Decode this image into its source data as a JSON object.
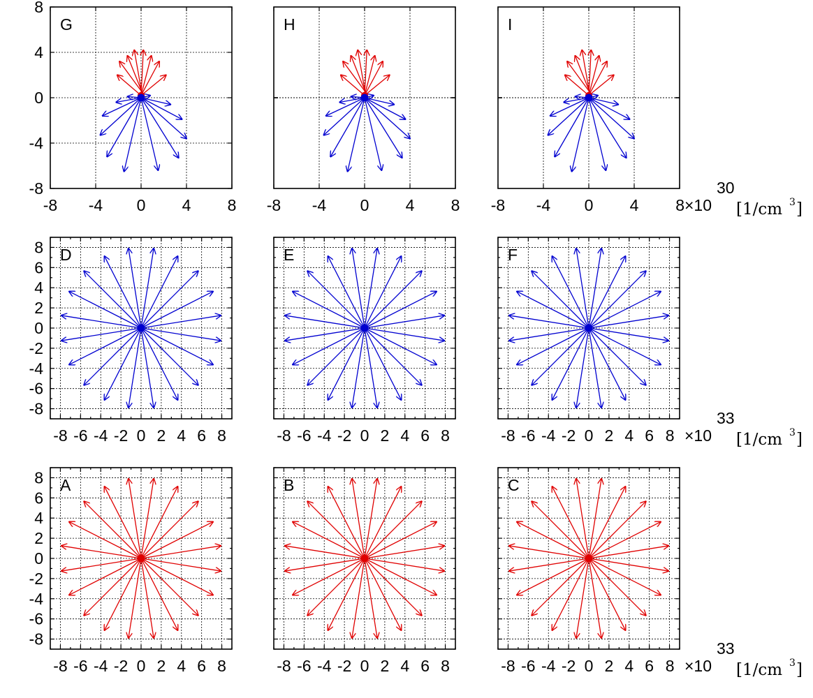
{
  "chart_data": [
    {
      "type": "vector-field",
      "panel": "G",
      "label": "G",
      "row": 0,
      "col": 0,
      "xlim": [
        -8,
        8
      ],
      "ylim": [
        -8,
        8
      ],
      "xticks": [
        "-8",
        "-4",
        "0",
        "4",
        "8"
      ],
      "yticks": [
        "8",
        "4",
        "0",
        "-4",
        "-8"
      ],
      "minor_ticks": false,
      "color": "#e00000",
      "color2": "#0000d0",
      "vectors": [
        [
          0.3,
          0.2,
          -1.9,
          3.2
        ],
        [
          0.2,
          0.2,
          -1.2,
          3.7
        ],
        [
          0.1,
          0.2,
          -0.6,
          4.2
        ],
        [
          0,
          0.2,
          0.2,
          4.2
        ],
        [
          0,
          0.2,
          0.9,
          3.7
        ],
        [
          0,
          0.2,
          1.6,
          3.2
        ],
        [
          0,
          0.2,
          -2.1,
          2.0
        ],
        [
          0,
          0.2,
          2.2,
          2.0
        ],
        [
          0,
          0,
          -2.2,
          -0.4
        ],
        [
          0,
          0,
          2.6,
          -0.6
        ],
        [
          0,
          0,
          -3.4,
          -1.6
        ],
        [
          0,
          0,
          3.6,
          -1.9
        ],
        [
          0,
          0,
          -3.6,
          -3.3
        ],
        [
          0,
          0,
          4.0,
          -3.6
        ],
        [
          0,
          0,
          -3.0,
          -5.2
        ],
        [
          0,
          0,
          3.3,
          -5.3
        ],
        [
          0,
          0,
          -1.5,
          -6.5
        ],
        [
          0,
          0,
          1.5,
          -6.4
        ],
        [
          0,
          0,
          0.8,
          0.2
        ],
        [
          0,
          0,
          -1.2,
          0.1
        ]
      ],
      "vector_colors": [
        "#e00000",
        "#e00000",
        "#e00000",
        "#e00000",
        "#e00000",
        "#e00000",
        "#e00000",
        "#e00000",
        "#0000d0",
        "#0000d0",
        "#0000d0",
        "#0000d0",
        "#0000d0",
        "#0000d0",
        "#0000d0",
        "#0000d0",
        "#0000d0",
        "#0000d0",
        "#0000d0",
        "#0000d0"
      ]
    },
    {
      "type": "vector-field",
      "panel": "H",
      "label": "H",
      "row": 0,
      "col": 1,
      "xlim": [
        -8,
        8
      ],
      "ylim": [
        -8,
        8
      ],
      "xticks": [
        "-8",
        "-4",
        "0",
        "4",
        "8"
      ],
      "yticks": [
        "",
        "",
        "",
        "",
        ""
      ],
      "minor_ticks": false,
      "vectors": [
        [
          0.3,
          0.2,
          -1.9,
          3.2
        ],
        [
          0.2,
          0.2,
          -1.2,
          3.7
        ],
        [
          0.1,
          0.2,
          -0.6,
          4.2
        ],
        [
          0,
          0.2,
          0.2,
          4.2
        ],
        [
          0,
          0.2,
          0.9,
          3.7
        ],
        [
          0,
          0.2,
          1.6,
          3.2
        ],
        [
          0,
          0.2,
          -2.1,
          2.0
        ],
        [
          0,
          0.2,
          2.2,
          2.0
        ],
        [
          0,
          0,
          -2.2,
          -0.4
        ],
        [
          0,
          0,
          2.6,
          -0.6
        ],
        [
          0,
          0,
          -3.4,
          -1.6
        ],
        [
          0,
          0,
          3.6,
          -1.9
        ],
        [
          0,
          0,
          -3.6,
          -3.3
        ],
        [
          0,
          0,
          4.0,
          -3.6
        ],
        [
          0,
          0,
          -3.0,
          -5.2
        ],
        [
          0,
          0,
          3.3,
          -5.3
        ],
        [
          0,
          0,
          -1.5,
          -6.5
        ],
        [
          0,
          0,
          1.5,
          -6.4
        ],
        [
          0,
          0,
          0.8,
          0.2
        ],
        [
          0,
          0,
          -1.2,
          0.1
        ]
      ],
      "vector_colors": [
        "#e00000",
        "#e00000",
        "#e00000",
        "#e00000",
        "#e00000",
        "#e00000",
        "#e00000",
        "#e00000",
        "#0000d0",
        "#0000d0",
        "#0000d0",
        "#0000d0",
        "#0000d0",
        "#0000d0",
        "#0000d0",
        "#0000d0",
        "#0000d0",
        "#0000d0",
        "#0000d0",
        "#0000d0"
      ]
    },
    {
      "type": "vector-field",
      "panel": "I",
      "label": "I",
      "row": 0,
      "col": 2,
      "xlim": [
        -8,
        8
      ],
      "ylim": [
        -8,
        8
      ],
      "xticks": [
        "-8",
        "-4",
        "0",
        "4",
        "8"
      ],
      "yticks": [
        "",
        "",
        "",
        "",
        ""
      ],
      "minor_ticks": false,
      "vectors": [
        [
          0.3,
          0.2,
          -1.9,
          3.2
        ],
        [
          0.2,
          0.2,
          -1.2,
          3.7
        ],
        [
          0.1,
          0.2,
          -0.6,
          4.2
        ],
        [
          0,
          0.2,
          0.2,
          4.2
        ],
        [
          0,
          0.2,
          0.9,
          3.7
        ],
        [
          0,
          0.2,
          1.6,
          3.2
        ],
        [
          0,
          0.2,
          -2.1,
          2.0
        ],
        [
          0,
          0.2,
          2.2,
          2.0
        ],
        [
          0,
          0,
          -2.2,
          -0.4
        ],
        [
          0,
          0,
          2.6,
          -0.6
        ],
        [
          0,
          0,
          -3.4,
          -1.6
        ],
        [
          0,
          0,
          3.6,
          -1.9
        ],
        [
          0,
          0,
          -3.6,
          -3.3
        ],
        [
          0,
          0,
          4.0,
          -3.6
        ],
        [
          0,
          0,
          -3.0,
          -5.2
        ],
        [
          0,
          0,
          3.3,
          -5.3
        ],
        [
          0,
          0,
          -1.5,
          -6.5
        ],
        [
          0,
          0,
          1.5,
          -6.4
        ],
        [
          0,
          0,
          0.8,
          0.2
        ],
        [
          0,
          0,
          -1.2,
          0.1
        ]
      ],
      "vector_colors": [
        "#e00000",
        "#e00000",
        "#e00000",
        "#e00000",
        "#e00000",
        "#e00000",
        "#e00000",
        "#e00000",
        "#0000d0",
        "#0000d0",
        "#0000d0",
        "#0000d0",
        "#0000d0",
        "#0000d0",
        "#0000d0",
        "#0000d0",
        "#0000d0",
        "#0000d0",
        "#0000d0",
        "#0000d0"
      ]
    },
    {
      "type": "vector-field",
      "panel": "D",
      "label": "D",
      "row": 1,
      "col": 0,
      "xlim": [
        -9,
        9
      ],
      "ylim": [
        -9,
        9
      ],
      "xticks": [
        "-8",
        "-6",
        "-4",
        "-2",
        "0",
        "2",
        "4",
        "6",
        "8"
      ],
      "yticks": [
        "8",
        "6",
        "4",
        "2",
        "0",
        "-2",
        "-4",
        "-6",
        "-8"
      ],
      "minor_ticks": true,
      "color": "#0000d0",
      "star": true,
      "radius": 8
    },
    {
      "type": "vector-field",
      "panel": "E",
      "label": "E",
      "row": 1,
      "col": 1,
      "xlim": [
        -9,
        9
      ],
      "ylim": [
        -9,
        9
      ],
      "xticks": [
        "-8",
        "-6",
        "-4",
        "-2",
        "0",
        "2",
        "4",
        "6",
        "8"
      ],
      "yticks": [],
      "minor_ticks": true,
      "color": "#0000d0",
      "star": true,
      "radius": 8
    },
    {
      "type": "vector-field",
      "panel": "F",
      "label": "F",
      "row": 1,
      "col": 2,
      "xlim": [
        -9,
        9
      ],
      "ylim": [
        -9,
        9
      ],
      "xticks": [
        "-8",
        "-6",
        "-4",
        "-2",
        "0",
        "2",
        "4",
        "6",
        "8"
      ],
      "yticks": [],
      "minor_ticks": true,
      "color": "#0000d0",
      "star": true,
      "radius": 8
    },
    {
      "type": "vector-field",
      "panel": "A",
      "label": "A",
      "row": 2,
      "col": 0,
      "xlim": [
        -9,
        9
      ],
      "ylim": [
        -9,
        9
      ],
      "xticks": [
        "-8",
        "-6",
        "-4",
        "-2",
        "0",
        "2",
        "4",
        "6",
        "8"
      ],
      "yticks": [
        "8",
        "6",
        "4",
        "2",
        "0",
        "-2",
        "-4",
        "-6",
        "-8"
      ],
      "minor_ticks": true,
      "color": "#e00000",
      "star": true,
      "radius": 8
    },
    {
      "type": "vector-field",
      "panel": "B",
      "label": "B",
      "row": 2,
      "col": 1,
      "xlim": [
        -9,
        9
      ],
      "ylim": [
        -9,
        9
      ],
      "xticks": [
        "-8",
        "-6",
        "-4",
        "-2",
        "0",
        "2",
        "4",
        "6",
        "8"
      ],
      "yticks": [],
      "minor_ticks": true,
      "color": "#e00000",
      "star": true,
      "radius": 8
    },
    {
      "type": "vector-field",
      "panel": "C",
      "label": "C",
      "row": 2,
      "col": 2,
      "xlim": [
        -9,
        9
      ],
      "ylim": [
        -9,
        9
      ],
      "xticks": [
        "-8",
        "-6",
        "-4",
        "-2",
        "0",
        "2",
        "4",
        "6",
        "8"
      ],
      "yticks": [],
      "minor_ticks": true,
      "color": "#e00000",
      "star": true,
      "radius": 8
    }
  ],
  "scale_annotations": [
    {
      "row": 0,
      "times": "×10",
      "exponent": "30",
      "unit": "[1/cm",
      "unit_sup": "3",
      "unit_close": "]"
    },
    {
      "row": 1,
      "times": "×10",
      "exponent": "33",
      "unit": "[1/cm",
      "unit_sup": "3",
      "unit_close": "]"
    },
    {
      "row": 2,
      "times": "×10",
      "exponent": "33",
      "unit": "[1/cm",
      "unit_sup": "3",
      "unit_close": "]"
    }
  ]
}
